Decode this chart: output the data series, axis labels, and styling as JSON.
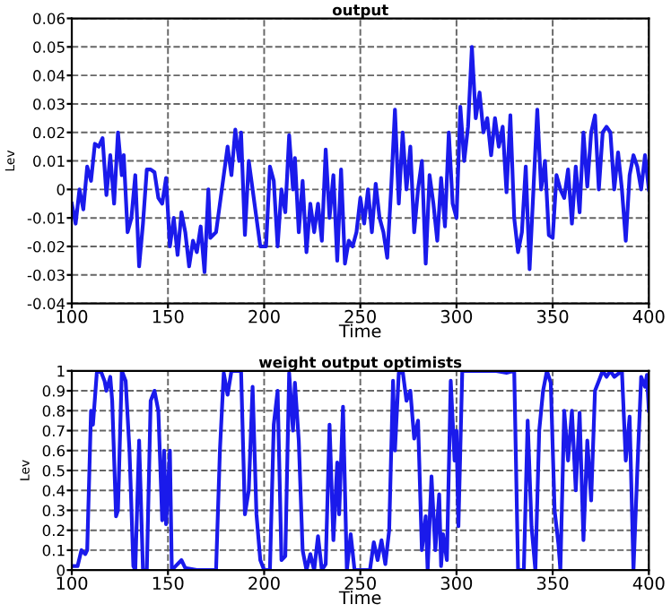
{
  "chart_data": [
    {
      "type": "line",
      "title": "output",
      "xlabel": "Time",
      "ylabel": "Lev",
      "xlim": [
        100,
        400
      ],
      "xticks": [
        100,
        150,
        200,
        250,
        300,
        350,
        400
      ],
      "ylim": [
        -0.04,
        0.06
      ],
      "yticks": [
        -0.04,
        -0.03,
        -0.02,
        -0.01,
        0,
        0.01,
        0.02,
        0.03,
        0.04,
        0.05,
        0.06
      ],
      "grid": true,
      "line_style": "solid",
      "marker": "none",
      "series": [
        {
          "color": "#1a1aeb",
          "x": [
            100,
            102,
            104,
            106,
            108,
            110,
            112,
            114,
            116,
            118,
            120,
            122,
            124,
            126,
            127,
            129,
            131,
            133,
            135,
            137,
            139,
            141,
            143,
            145,
            147,
            149,
            151,
            153,
            155,
            157,
            159,
            161,
            163,
            165,
            167,
            169,
            171,
            172,
            175,
            177,
            179,
            181,
            183,
            185,
            187,
            188,
            190,
            192,
            194,
            196,
            198,
            201,
            203,
            205,
            207,
            209,
            211,
            213,
            215,
            216,
            218,
            220,
            222,
            224,
            226,
            228,
            230,
            232,
            234,
            236,
            238,
            240,
            242,
            244,
            246,
            248,
            250,
            252,
            254,
            256,
            258,
            260,
            262,
            264,
            266,
            268,
            270,
            272,
            274,
            276,
            278,
            280,
            282,
            284,
            286,
            288,
            290,
            292,
            294,
            296,
            298,
            300,
            302,
            304,
            306,
            308,
            310,
            312,
            314,
            316,
            318,
            320,
            322,
            324,
            326,
            328,
            330,
            332,
            334,
            336,
            338,
            340,
            342,
            344,
            346,
            348,
            350,
            352,
            354,
            356,
            358,
            360,
            362,
            364,
            366,
            368,
            370,
            372,
            374,
            376,
            378,
            380,
            382,
            384,
            386,
            388,
            390,
            392,
            394,
            396,
            398,
            400
          ],
          "values": [
            -0.005,
            -0.012,
            0.0,
            -0.007,
            0.008,
            0.003,
            0.016,
            0.015,
            0.018,
            -0.002,
            0.012,
            -0.005,
            0.02,
            0.005,
            0.012,
            -0.015,
            -0.01,
            0.005,
            -0.027,
            -0.012,
            0.007,
            0.007,
            0.006,
            -0.003,
            -0.005,
            0.004,
            -0.02,
            -0.01,
            -0.023,
            -0.008,
            -0.015,
            -0.027,
            -0.018,
            -0.022,
            -0.013,
            -0.029,
            0.0,
            -0.017,
            -0.015,
            -0.005,
            0.005,
            0.015,
            0.005,
            0.021,
            0.01,
            0.02,
            -0.016,
            0.01,
            0.0,
            -0.01,
            -0.02,
            -0.02,
            0.008,
            0.003,
            -0.02,
            0.0,
            -0.008,
            0.019,
            0.0,
            0.011,
            -0.015,
            0.003,
            -0.022,
            -0.005,
            -0.015,
            -0.005,
            -0.018,
            0.014,
            -0.01,
            0.005,
            -0.025,
            0.007,
            -0.026,
            -0.018,
            -0.02,
            -0.015,
            -0.003,
            -0.012,
            0.0,
            -0.015,
            0.002,
            -0.01,
            -0.015,
            -0.024,
            0.0,
            0.028,
            -0.005,
            0.02,
            0.0,
            0.015,
            -0.015,
            0.0,
            0.01,
            -0.026,
            0.005,
            -0.005,
            -0.018,
            0.004,
            -0.013,
            0.02,
            -0.005,
            -0.01,
            0.029,
            0.01,
            0.022,
            0.05,
            0.025,
            0.034,
            0.02,
            0.025,
            0.012,
            0.025,
            0.015,
            0.022,
            -0.001,
            0.026,
            -0.01,
            -0.022,
            -0.015,
            0.008,
            -0.028,
            0.0,
            0.028,
            0.0,
            0.01,
            -0.016,
            -0.017,
            0.005,
            0.0,
            -0.003,
            0.007,
            -0.012,
            0.008,
            -0.008,
            0.02,
            0.001,
            0.02,
            0.026,
            0.0,
            0.02,
            0.022,
            0.02,
            0.0,
            0.013,
            0.0,
            -0.018,
            0.005,
            0.012,
            0.008,
            0.0,
            0.012,
            0.0
          ]
        }
      ]
    },
    {
      "type": "line",
      "title": "weight output optimists",
      "xlabel": "Time",
      "ylabel": "Lev",
      "xlim": [
        100,
        400
      ],
      "xticks": [
        100,
        150,
        200,
        250,
        300,
        350,
        400
      ],
      "ylim": [
        0,
        1
      ],
      "yticks": [
        0,
        0.1,
        0.2,
        0.3,
        0.4,
        0.5,
        0.6,
        0.7,
        0.8,
        0.9,
        1
      ],
      "grid": true,
      "line_style": "solid",
      "marker": "none",
      "series": [
        {
          "color": "#1a1aeb",
          "x": [
            100,
            103,
            105,
            107,
            108,
            110,
            111,
            113,
            115,
            117,
            118,
            120,
            121,
            123,
            124,
            126,
            128,
            130,
            132,
            133,
            135,
            137,
            139,
            141,
            143,
            145,
            147,
            148,
            149,
            151,
            152,
            154,
            157,
            159,
            165,
            172,
            175,
            177,
            179,
            181,
            183,
            188,
            190,
            192,
            194,
            196,
            198,
            200,
            203,
            205,
            207,
            209,
            211,
            213,
            215,
            216,
            218,
            220,
            222,
            224,
            226,
            228,
            230,
            232,
            234,
            236,
            238,
            239,
            241,
            243,
            245,
            247,
            250,
            255,
            257,
            259,
            261,
            263,
            265,
            267,
            268,
            270,
            272,
            274,
            276,
            278,
            280,
            282,
            284,
            285,
            287,
            289,
            291,
            292,
            293,
            295,
            297,
            299,
            300,
            301,
            303,
            320,
            326,
            330,
            332,
            335,
            337,
            339,
            341,
            343,
            345,
            347,
            349,
            351,
            353,
            354,
            356,
            358,
            360,
            362,
            364,
            366,
            368,
            370,
            372,
            374,
            376,
            378,
            380,
            382,
            386,
            388,
            390,
            392,
            394,
            396,
            398,
            399,
            400
          ],
          "values": [
            0.02,
            0.02,
            0.1,
            0.08,
            0.1,
            0.8,
            0.73,
            0.99,
            1.0,
            0.95,
            0.9,
            0.97,
            0.85,
            0.27,
            0.3,
            1.0,
            0.95,
            0.6,
            0.02,
            0.0,
            0.65,
            0.0,
            0.0,
            0.85,
            0.9,
            0.8,
            0.25,
            0.6,
            0.23,
            0.6,
            0.0,
            0.02,
            0.05,
            0.01,
            0.0,
            0.0,
            0.0,
            0.6,
            0.99,
            0.88,
            1.0,
            1.0,
            0.28,
            0.4,
            0.92,
            0.28,
            0.05,
            0.0,
            0.0,
            0.73,
            0.9,
            0.05,
            0.07,
            0.99,
            0.7,
            0.94,
            0.65,
            0.1,
            0.0,
            0.08,
            0.0,
            0.17,
            0.0,
            0.03,
            0.73,
            0.15,
            0.54,
            0.28,
            0.82,
            0.0,
            0.18,
            0.0,
            0.0,
            0.0,
            0.14,
            0.05,
            0.15,
            0.03,
            0.2,
            0.95,
            0.6,
            0.99,
            1.0,
            0.85,
            0.9,
            0.66,
            0.75,
            0.1,
            0.27,
            0.0,
            0.47,
            0.1,
            0.38,
            0.02,
            0.18,
            0.05,
            0.95,
            0.55,
            0.7,
            0.22,
            1.0,
            1.0,
            0.99,
            1.0,
            0.0,
            0.0,
            0.75,
            0.22,
            0.0,
            0.7,
            0.9,
            1.0,
            0.94,
            0.3,
            0.13,
            0.0,
            0.8,
            0.55,
            0.8,
            0.4,
            0.79,
            0.15,
            0.65,
            0.35,
            0.9,
            0.95,
            1.0,
            0.97,
            1.0,
            0.97,
            1.0,
            0.55,
            0.77,
            0.0,
            0.5,
            0.97,
            0.92,
            0.98,
            0.8
          ]
        }
      ]
    }
  ]
}
